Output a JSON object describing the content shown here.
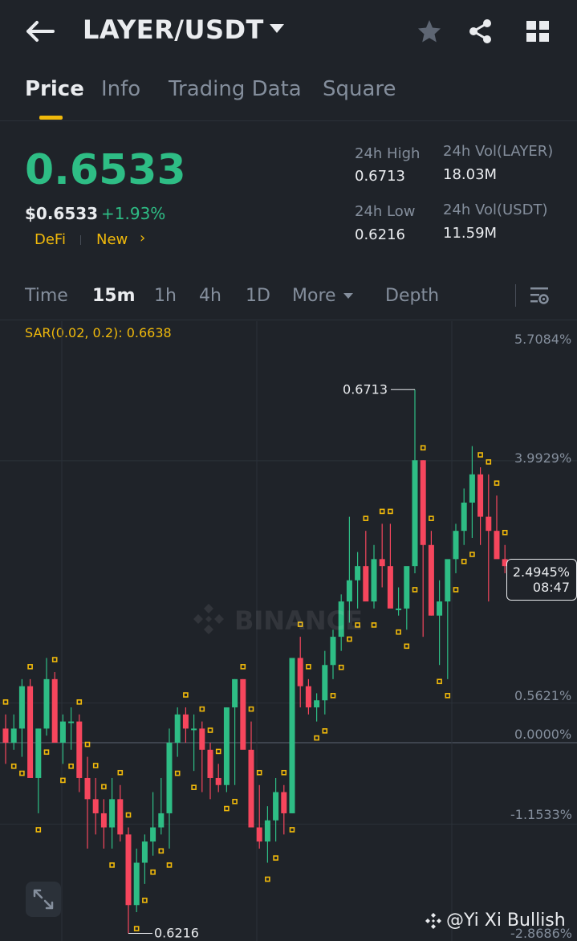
{
  "header": {
    "pair": "LAYER/USDT",
    "icons": [
      "back-arrow-icon",
      "chevron-down-icon",
      "star-icon",
      "share-icon",
      "grid-icon"
    ]
  },
  "tabs": [
    {
      "label": "Price",
      "active": true
    },
    {
      "label": "Info",
      "active": false
    },
    {
      "label": "Trading Data",
      "active": false
    },
    {
      "label": "Square",
      "active": false
    }
  ],
  "ticker": {
    "last_price": "0.6533",
    "usd_price": "$0.6533",
    "change": "+1.93%",
    "tags": [
      "DeFi",
      "New"
    ],
    "high_label": "24h High",
    "high": "0.6713",
    "low_label": "24h Low",
    "low": "0.6216",
    "vol_base_label": "24h Vol(LAYER)",
    "vol_base": "18.03M",
    "vol_quote_label": "24h Vol(USDT)",
    "vol_quote": "11.59M"
  },
  "timeframes": {
    "items": [
      "Time",
      "15m",
      "1h",
      "4h",
      "1D"
    ],
    "active": "15m",
    "more_label": "More",
    "depth_label": "Depth"
  },
  "indicator": "SAR(0.02, 0.2): 0.6638",
  "chart_data": {
    "type": "candlestick",
    "y_axis_labels": [
      "5.7084%",
      "3.9929%",
      "2.4945%",
      "0.5621%",
      "0.0000%",
      "-1.1533%",
      "-2.8686%"
    ],
    "current_change": "2.4945%",
    "countdown": "08:47",
    "high_marker": "0.6713",
    "low_marker": "0.6216",
    "candles_ohlc_pct": [
      [
        0.2,
        0.4,
        -0.3,
        0.0
      ],
      [
        0.0,
        0.4,
        -0.1,
        0.2
      ],
      [
        0.2,
        0.9,
        -0.2,
        0.8
      ],
      [
        0.8,
        0.9,
        -0.1,
        -0.5
      ],
      [
        -0.5,
        0.2,
        -1.0,
        0.2
      ],
      [
        0.2,
        1.2,
        0.1,
        0.9
      ],
      [
        0.9,
        1.0,
        0.3,
        0.0
      ],
      [
        0.0,
        0.4,
        -0.3,
        0.3
      ],
      [
        0.3,
        0.5,
        -0.1,
        0.3
      ],
      [
        0.3,
        0.4,
        -0.7,
        -0.5
      ],
      [
        -0.5,
        -0.2,
        -1.5,
        -0.8
      ],
      [
        -0.8,
        -0.5,
        -1.3,
        -1.0
      ],
      [
        -1.0,
        -0.8,
        -1.5,
        -1.2
      ],
      [
        -1.2,
        -0.5,
        -1.5,
        -0.8
      ],
      [
        -0.8,
        -0.6,
        -1.4,
        -1.3
      ],
      [
        -1.3,
        -1.2,
        -2.7,
        -2.3
      ],
      [
        -2.3,
        -1.5,
        -2.4,
        -1.7
      ],
      [
        -1.7,
        -1.3,
        -2.0,
        -1.4
      ],
      [
        -1.4,
        -0.7,
        -1.6,
        -1.2
      ],
      [
        -1.2,
        -0.5,
        -1.3,
        -1.0
      ],
      [
        -1.0,
        0.2,
        -1.5,
        0.0
      ],
      [
        0.0,
        0.5,
        -0.2,
        0.4
      ],
      [
        0.4,
        0.5,
        0.0,
        0.2
      ],
      [
        0.2,
        0.4,
        -0.4,
        0.2
      ],
      [
        0.2,
        0.3,
        -0.7,
        -0.1
      ],
      [
        -0.1,
        0.0,
        -0.8,
        -0.5
      ],
      [
        -0.5,
        -0.3,
        -0.7,
        -0.6
      ],
      [
        -0.6,
        0.5,
        -0.7,
        0.5
      ],
      [
        0.5,
        0.9,
        -0.6,
        0.9
      ],
      [
        0.9,
        0.9,
        0.1,
        -0.1
      ],
      [
        -0.1,
        0.3,
        -1.0,
        -1.2
      ],
      [
        -1.2,
        -0.6,
        -1.5,
        -1.4
      ],
      [
        -1.4,
        -0.9,
        -1.7,
        -1.1
      ],
      [
        -1.1,
        -0.5,
        -1.4,
        -0.7
      ],
      [
        -0.7,
        -0.6,
        -1.3,
        -1.0
      ],
      [
        -1.0,
        1.2,
        -1.0,
        1.2
      ],
      [
        1.2,
        1.5,
        0.5,
        0.8
      ],
      [
        0.8,
        0.9,
        0.4,
        0.5
      ],
      [
        0.5,
        0.7,
        0.3,
        0.6
      ],
      [
        0.6,
        1.3,
        0.4,
        1.1
      ],
      [
        1.1,
        1.6,
        0.9,
        1.5
      ],
      [
        1.5,
        2.1,
        1.3,
        2.0
      ],
      [
        2.0,
        3.2,
        1.7,
        2.3
      ],
      [
        2.3,
        2.7,
        1.9,
        2.5
      ],
      [
        2.5,
        3.0,
        2.2,
        2.0
      ],
      [
        2.0,
        2.8,
        1.9,
        2.6
      ],
      [
        2.6,
        3.1,
        2.2,
        2.5
      ],
      [
        2.5,
        3.1,
        2.0,
        1.9
      ],
      [
        1.9,
        2.2,
        1.8,
        1.9
      ],
      [
        1.9,
        2.2,
        1.6,
        2.5
      ],
      [
        2.5,
        5.0,
        2.4,
        4.0
      ],
      [
        4.0,
        4.0,
        1.5,
        2.8
      ],
      [
        2.8,
        3.0,
        1.8,
        1.8
      ],
      [
        1.8,
        2.3,
        1.1,
        2.0
      ],
      [
        2.0,
        2.2,
        0.9,
        2.6
      ],
      [
        2.6,
        3.1,
        2.4,
        3.0
      ],
      [
        3.0,
        3.6,
        2.8,
        3.4
      ],
      [
        3.4,
        4.2,
        2.9,
        3.8
      ],
      [
        3.8,
        3.9,
        2.8,
        3.2
      ],
      [
        3.2,
        3.8,
        2.0,
        3.0
      ],
      [
        3.0,
        3.5,
        2.8,
        2.6
      ],
      [
        2.6,
        2.8,
        2.4,
        2.5
      ]
    ]
  },
  "watermark": {
    "exchange": "BINANCE",
    "author": "@Yi Xi Bullish"
  },
  "colors": {
    "background": "#1f2329",
    "up": "#2ebd85",
    "down": "#f6465d",
    "accent": "#f0b90b",
    "muted": "#848e9c"
  }
}
